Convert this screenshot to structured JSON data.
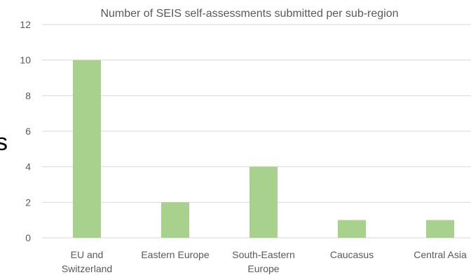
{
  "chart_data": {
    "type": "bar",
    "title": "Number of SEIS self-assessments submitted per sub-region",
    "categories": [
      [
        "EU and",
        "Switzerland"
      ],
      [
        "Eastern Europe"
      ],
      [
        "South-Eastern",
        "Europe"
      ],
      [
        "Caucasus"
      ],
      [
        "Central Asia"
      ]
    ],
    "values": [
      10,
      2,
      4,
      1,
      1
    ],
    "ylim": [
      0,
      12
    ],
    "yticks": [
      0,
      2,
      4,
      6,
      8,
      10,
      12
    ],
    "grid": true,
    "bar_color": "#a9d18e",
    "xlabel": "",
    "ylabel": ""
  },
  "background_fragment": "s"
}
